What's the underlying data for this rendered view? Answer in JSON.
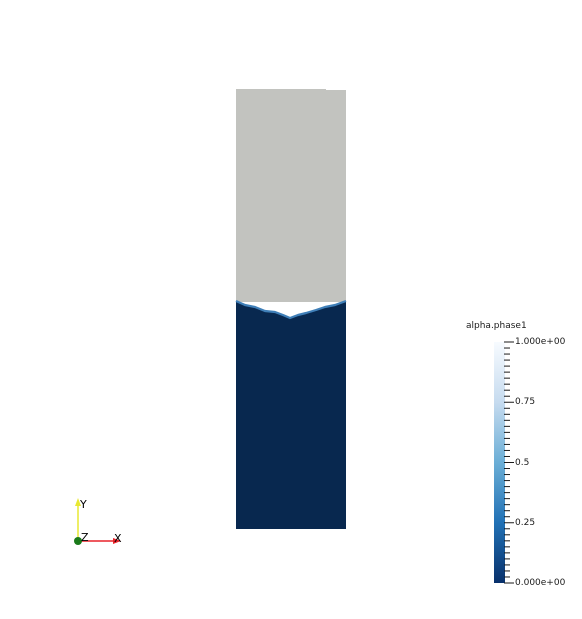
{
  "scalar_bar": {
    "title": "alpha.phase1",
    "ticks": [
      {
        "value": 1.0,
        "label": "1.000e+00"
      },
      {
        "value": 0.75,
        "label": "0.75"
      },
      {
        "value": 0.5,
        "label": "0.5"
      },
      {
        "value": 0.25,
        "label": "0.25"
      },
      {
        "value": 0.0,
        "label": "0.000e+00"
      }
    ],
    "colors": {
      "high": "#f7fbff",
      "mid": "#6baed6",
      "low": "#08306b"
    }
  },
  "domain": {
    "gas_color": "#c2c3bf",
    "liquid_color": "#08284f"
  },
  "orientation_axes": {
    "y_label": "Y",
    "z_label": "Z",
    "x_label": "X",
    "colors": {
      "x": "#e8222a",
      "y": "#e8e832",
      "z": "#1a7a1a"
    }
  }
}
